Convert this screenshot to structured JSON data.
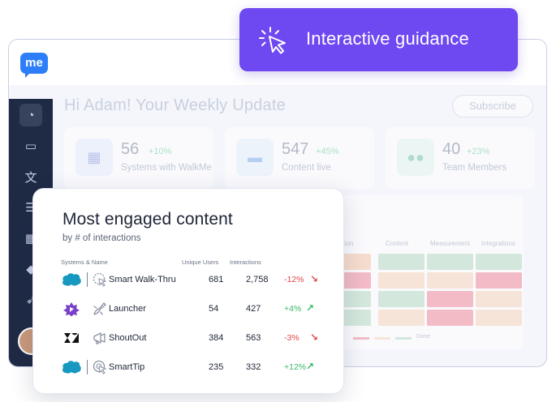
{
  "guide": {
    "label": "Interactive guidance",
    "icon": "cursor-click-icon"
  },
  "app": {
    "logo": "me",
    "greeting": "Hi Adam! Your Weekly Update",
    "subscribe": "Subscribe",
    "stats": [
      {
        "value": "56",
        "delta": "+10%",
        "label": "Systems with WalkMe",
        "icon": "grid-icon",
        "color": "#e9edfb"
      },
      {
        "value": "547",
        "delta": "+45%",
        "label": "Content live",
        "icon": "chat-bubble-icon",
        "color": "#e6f1fb"
      },
      {
        "value": "40",
        "delta": "+23%",
        "label": "Team Members",
        "icon": "users-icon",
        "color": "#e4f6f0"
      }
    ],
    "heatmap": {
      "headers": [
        "omation",
        "Content",
        "Measurement",
        "Integrations"
      ],
      "legend": "Done"
    }
  },
  "card": {
    "title": "Most engaged content",
    "subtitle": "by # of interactions",
    "columns": {
      "systems": "Systems & Name",
      "users": "Unique Users",
      "interactions": "Interactions"
    },
    "rows": [
      {
        "system": "salesforce",
        "type": "walkthru-icon",
        "name": "Smart Walk-Thru",
        "users": "681",
        "interactions": "2,758",
        "change": "-12%",
        "trend": "down"
      },
      {
        "system": "launcher-app",
        "type": "launcher-icon",
        "name": "Launcher",
        "users": "54",
        "interactions": "427",
        "change": "+4%",
        "trend": "up"
      },
      {
        "system": "zendesk",
        "type": "shoutout-icon",
        "name": "ShoutOut",
        "users": "384",
        "interactions": "563",
        "change": "-3%",
        "trend": "down"
      },
      {
        "system": "salesforce",
        "type": "smarttip-icon",
        "name": "SmartTip",
        "users": "235",
        "interactions": "332",
        "change": "+12%",
        "trend": "up"
      }
    ]
  },
  "colors": {
    "accent": "#6e48f0",
    "positive": "#39b768",
    "negative": "#e14646",
    "sidebar": "#1f2a44"
  }
}
